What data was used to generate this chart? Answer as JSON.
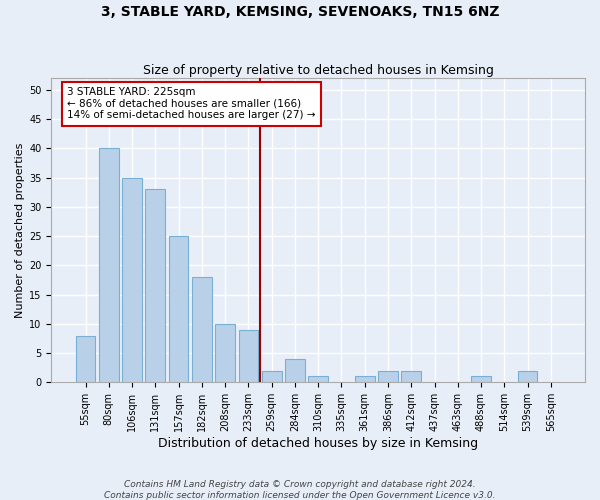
{
  "title": "3, STABLE YARD, KEMSING, SEVENOAKS, TN15 6NZ",
  "subtitle": "Size of property relative to detached houses in Kemsing",
  "xlabel": "Distribution of detached houses by size in Kemsing",
  "ylabel": "Number of detached properties",
  "categories": [
    "55sqm",
    "80sqm",
    "106sqm",
    "131sqm",
    "157sqm",
    "182sqm",
    "208sqm",
    "233sqm",
    "259sqm",
    "284sqm",
    "310sqm",
    "335sqm",
    "361sqm",
    "386sqm",
    "412sqm",
    "437sqm",
    "463sqm",
    "488sqm",
    "514sqm",
    "539sqm",
    "565sqm"
  ],
  "values": [
    8,
    40,
    35,
    33,
    25,
    18,
    10,
    9,
    2,
    4,
    1,
    0,
    1,
    2,
    2,
    0,
    0,
    1,
    0,
    2,
    0
  ],
  "bar_color": "#b8d0e8",
  "bar_edge_color": "#7aafd4",
  "vline_color": "#990000",
  "annotation_line1": "3 STABLE YARD: 225sqm",
  "annotation_line2": "← 86% of detached houses are smaller (166)",
  "annotation_line3": "14% of semi-detached houses are larger (27) →",
  "annotation_box_color": "#ffffff",
  "annotation_box_edge": "#cc0000",
  "ylim": [
    0,
    52
  ],
  "yticks": [
    0,
    5,
    10,
    15,
    20,
    25,
    30,
    35,
    40,
    45,
    50
  ],
  "footer1": "Contains HM Land Registry data © Crown copyright and database right 2024.",
  "footer2": "Contains public sector information licensed under the Open Government Licence v3.0.",
  "bg_color": "#e8eef8",
  "grid_color": "#ffffff",
  "title_fontsize": 10,
  "subtitle_fontsize": 9,
  "ylabel_fontsize": 8,
  "xlabel_fontsize": 9,
  "tick_fontsize": 7,
  "annot_fontsize": 7.5,
  "footer_fontsize": 6.5,
  "vline_x_index": 7.5
}
